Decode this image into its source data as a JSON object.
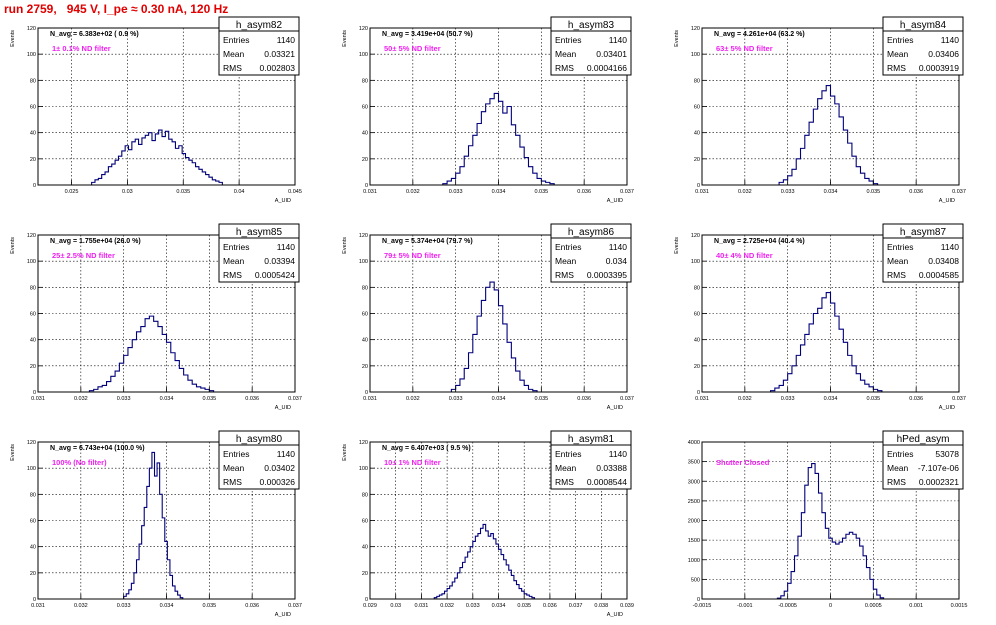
{
  "run_title": "run 2759,   945 V, I_pe ≈ 0.30 nA, 120 Hz",
  "chart_data": [
    {
      "type": "histogram",
      "name": "h_asym82",
      "navg": "N_avg = 6.383e+02 ( 0.9 %)",
      "filter_label": "1± 0.1% ND filter",
      "stats": {
        "Entries": "1140",
        "Mean": "0.03321",
        "RMS": "0.002803"
      },
      "ylabel": "Events",
      "xlabel": "A_UID",
      "xlim": [
        0.022,
        0.045
      ],
      "ylim": [
        0,
        120
      ],
      "xticks": [
        "0.025",
        "0.03",
        "0.035",
        "0.04",
        "0.045"
      ],
      "xtick_values": [
        0.025,
        0.03,
        0.035,
        0.04,
        0.045
      ],
      "yticks": [
        "0",
        "20",
        "40",
        "60",
        "80",
        "100",
        "120"
      ],
      "bins": {
        "start": 0.0268,
        "width": 0.0003,
        "counts": [
          2,
          4,
          5,
          8,
          10,
          14,
          16,
          19,
          22,
          26,
          30,
          27,
          33,
          35,
          31,
          36,
          38,
          40,
          34,
          39,
          42,
          37,
          41,
          35,
          33,
          28,
          30,
          24,
          21,
          19,
          17,
          14,
          12,
          10,
          8,
          6,
          4,
          3,
          2
        ]
      }
    },
    {
      "type": "histogram",
      "name": "h_asym83",
      "navg": "N_avg = 3.419e+04 (50.7 %)",
      "filter_label": "50± 5% ND filter",
      "stats": {
        "Entries": "1140",
        "Mean": "0.03401",
        "RMS": "0.0004166"
      },
      "ylabel": "Events",
      "xlabel": "A_UID",
      "xlim": [
        0.031,
        0.037
      ],
      "ylim": [
        0,
        120
      ],
      "xticks": [
        "0.031",
        "0.032",
        "0.033",
        "0.034",
        "0.035",
        "0.036",
        "0.037"
      ],
      "xtick_values": [
        0.031,
        0.032,
        0.033,
        0.034,
        0.035,
        0.036,
        0.037
      ],
      "yticks": [
        "0",
        "20",
        "40",
        "60",
        "80",
        "100",
        "120"
      ],
      "bins": {
        "start": 0.0327,
        "width": 0.0001,
        "counts": [
          1,
          3,
          5,
          9,
          14,
          22,
          30,
          38,
          47,
          56,
          62,
          66,
          70,
          64,
          55,
          60,
          46,
          38,
          29,
          21,
          14,
          9,
          5,
          3,
          2,
          1
        ]
      }
    },
    {
      "type": "histogram",
      "name": "h_asym84",
      "navg": "N_avg = 4.261e+04 (63.2 %)",
      "filter_label": "63± 5% ND filter",
      "stats": {
        "Entries": "1140",
        "Mean": "0.03406",
        "RMS": "0.0003919"
      },
      "ylabel": "Events",
      "xlabel": "A_UID",
      "xlim": [
        0.031,
        0.037
      ],
      "ylim": [
        0,
        120
      ],
      "xticks": [
        "0.031",
        "0.032",
        "0.033",
        "0.034",
        "0.035",
        "0.036",
        "0.037"
      ],
      "xtick_values": [
        0.031,
        0.032,
        0.033,
        0.034,
        0.035,
        0.036,
        0.037
      ],
      "yticks": [
        "0",
        "20",
        "40",
        "60",
        "80",
        "100",
        "120"
      ],
      "bins": {
        "start": 0.0328,
        "width": 0.0001,
        "counts": [
          2,
          4,
          7,
          12,
          20,
          28,
          38,
          48,
          58,
          66,
          72,
          76,
          68,
          62,
          52,
          42,
          32,
          22,
          14,
          9,
          5,
          3,
          1
        ]
      }
    },
    {
      "type": "histogram",
      "name": "h_asym85",
      "navg": "N_avg = 1.755e+04 (26.0 %)",
      "filter_label": "25± 2.5% ND filter",
      "stats": {
        "Entries": "1140",
        "Mean": "0.03394",
        "RMS": "0.0005424"
      },
      "ylabel": "Events",
      "xlabel": "A_UID",
      "xlim": [
        0.031,
        0.037
      ],
      "ylim": [
        0,
        120
      ],
      "xticks": [
        "0.031",
        "0.032",
        "0.033",
        "0.034",
        "0.035",
        "0.036",
        "0.037"
      ],
      "xtick_values": [
        0.031,
        0.032,
        0.033,
        0.034,
        0.035,
        0.036,
        0.037
      ],
      "yticks": [
        "0",
        "20",
        "40",
        "60",
        "80",
        "100",
        "120"
      ],
      "bins": {
        "start": 0.0322,
        "width": 0.0001,
        "counts": [
          1,
          2,
          4,
          5,
          8,
          12,
          16,
          22,
          28,
          34,
          40,
          46,
          50,
          56,
          58,
          54,
          50,
          44,
          38,
          30,
          24,
          18,
          13,
          9,
          6,
          4,
          3,
          2,
          1
        ]
      }
    },
    {
      "type": "histogram",
      "name": "h_asym86",
      "navg": "N_avg = 5.374e+04 (79.7 %)",
      "filter_label": "79± 5% ND filter",
      "stats": {
        "Entries": "1140",
        "Mean": "0.034",
        "RMS": "0.0003395"
      },
      "ylabel": "Events",
      "xlabel": "A_UID",
      "xlim": [
        0.031,
        0.037
      ],
      "ylim": [
        0,
        120
      ],
      "xticks": [
        "0.031",
        "0.032",
        "0.033",
        "0.034",
        "0.035",
        "0.036",
        "0.037"
      ],
      "xtick_values": [
        0.031,
        0.032,
        0.033,
        0.034,
        0.035,
        0.036,
        0.037
      ],
      "yticks": [
        "0",
        "20",
        "40",
        "60",
        "80",
        "100",
        "120"
      ],
      "bins": {
        "start": 0.0329,
        "width": 0.0001,
        "counts": [
          2,
          5,
          10,
          18,
          30,
          44,
          58,
          70,
          80,
          84,
          78,
          66,
          52,
          38,
          26,
          16,
          9,
          5,
          2,
          1
        ]
      }
    },
    {
      "type": "histogram",
      "name": "h_asym87",
      "navg": "N_avg = 2.725e+04 (40.4 %)",
      "filter_label": "40± 4% ND filter",
      "stats": {
        "Entries": "1140",
        "Mean": "0.03408",
        "RMS": "0.0004585"
      },
      "ylabel": "Events",
      "xlabel": "A_UID",
      "xlim": [
        0.031,
        0.037
      ],
      "ylim": [
        0,
        120
      ],
      "xticks": [
        "0.031",
        "0.032",
        "0.033",
        "0.034",
        "0.035",
        "0.036",
        "0.037"
      ],
      "xtick_values": [
        0.031,
        0.032,
        0.033,
        0.034,
        0.035,
        0.036,
        0.037
      ],
      "yticks": [
        "0",
        "20",
        "40",
        "60",
        "80",
        "100",
        "120"
      ],
      "bins": {
        "start": 0.0326,
        "width": 0.0001,
        "counts": [
          1,
          3,
          5,
          9,
          14,
          20,
          28,
          36,
          44,
          52,
          60,
          64,
          72,
          76,
          68,
          58,
          48,
          38,
          28,
          20,
          14,
          9,
          6,
          4,
          2,
          1
        ]
      }
    },
    {
      "type": "histogram",
      "name": "h_asym80",
      "navg": "N_avg = 6.743e+04 (100.0 %)",
      "filter_label": "100% (No filter)",
      "stats": {
        "Entries": "1140",
        "Mean": "0.03402",
        "RMS": "0.000326"
      },
      "ylabel": "Events",
      "xlabel": "A_UID",
      "xlim": [
        0.031,
        0.037
      ],
      "ylim": [
        0,
        120
      ],
      "xticks": [
        "0.031",
        "0.032",
        "0.033",
        "0.034",
        "0.035",
        "0.036",
        "0.037"
      ],
      "xtick_values": [
        0.031,
        0.032,
        0.033,
        0.034,
        0.035,
        0.036,
        0.037
      ],
      "yticks": [
        "0",
        "20",
        "40",
        "60",
        "80",
        "100",
        "120"
      ],
      "bins": {
        "start": 0.033,
        "width": 6e-05,
        "counts": [
          2,
          4,
          7,
          12,
          20,
          30,
          42,
          56,
          70,
          86,
          100,
          112,
          94,
          104,
          80,
          62,
          44,
          30,
          18,
          10,
          6,
          3,
          1
        ]
      }
    },
    {
      "type": "histogram",
      "name": "h_asym81",
      "navg": "N_avg = 6.407e+03 ( 9.5 %)",
      "filter_label": "10± 1% ND filter",
      "stats": {
        "Entries": "1140",
        "Mean": "0.03388",
        "RMS": "0.0008544"
      },
      "ylabel": "Events",
      "xlabel": "A_UID",
      "xlim": [
        0.029,
        0.039
      ],
      "ylim": [
        0,
        120
      ],
      "xticks": [
        "0.029",
        "0.03",
        "0.031",
        "0.032",
        "0.033",
        "0.034",
        "0.035",
        "0.036",
        "0.037",
        "0.038",
        "0.039"
      ],
      "xtick_values": [
        0.029,
        0.03,
        0.031,
        0.032,
        0.033,
        0.034,
        0.035,
        0.036,
        0.037,
        0.038,
        0.039
      ],
      "yticks": [
        "0",
        "20",
        "40",
        "60",
        "80",
        "100",
        "120"
      ],
      "bins": {
        "start": 0.0315,
        "width": 0.0001,
        "counts": [
          1,
          2,
          3,
          4,
          6,
          8,
          10,
          13,
          16,
          20,
          24,
          28,
          32,
          36,
          40,
          44,
          48,
          50,
          54,
          57,
          52,
          48,
          50,
          46,
          42,
          38,
          34,
          30,
          26,
          22,
          18,
          14,
          11,
          8,
          6,
          4,
          3,
          2,
          1
        ]
      }
    },
    {
      "type": "histogram",
      "name": "hPed_asym",
      "navg": "",
      "filter_label": "Shutter Closed",
      "stats": {
        "Entries": "53078",
        "Mean": "-7.107e-06",
        "RMS": "0.0002321"
      },
      "ylabel": "",
      "xlabel": "",
      "xlim": [
        -0.0015,
        0.0015
      ],
      "ylim": [
        0,
        4000
      ],
      "xticks": [
        "-0.0015",
        "-0.001",
        "-0.0005",
        "0",
        "0.0005",
        "0.001",
        "0.0015"
      ],
      "xtick_values": [
        -0.0015,
        -0.001,
        -0.0005,
        0,
        0.0005,
        0.001,
        0.0015
      ],
      "yticks": [
        "0",
        "500",
        "1000",
        "1500",
        "2000",
        "2500",
        "3000",
        "3500",
        "4000"
      ],
      "bins": {
        "start": -0.00062,
        "width": 4e-05,
        "counts": [
          20,
          80,
          200,
          400,
          700,
          1100,
          1600,
          2200,
          2900,
          3350,
          3450,
          3200,
          2700,
          2200,
          1800,
          1550,
          1450,
          1400,
          1450,
          1550,
          1650,
          1700,
          1650,
          1550,
          1350,
          1100,
          800,
          500,
          250,
          100,
          30
        ]
      }
    }
  ]
}
